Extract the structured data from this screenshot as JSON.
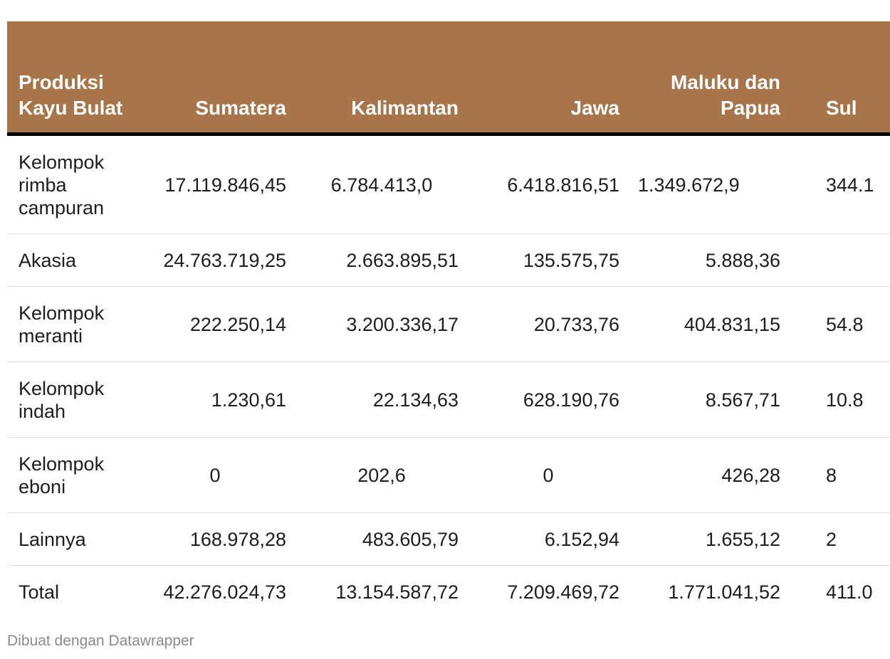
{
  "chart_data": {
    "type": "table",
    "columns": [
      "Produksi Kayu Bulat",
      "Sumatera",
      "Kalimantan",
      "Jawa",
      "Maluku dan Papua",
      "Sul"
    ],
    "rows": [
      [
        "Kelompok rimba campuran",
        "17.119.846,45",
        "6.784.413,0",
        "6.418.816,51",
        "1.349.672,9",
        "344.1"
      ],
      [
        "Akasia",
        "24.763.719,25",
        "2.663.895,51",
        "135.575,75",
        "5.888,36",
        ""
      ],
      [
        "Kelompok meranti",
        "222.250,14",
        "3.200.336,17",
        "20.733,76",
        "404.831,15",
        "54.8"
      ],
      [
        "Kelompok indah",
        "1.230,61",
        "22.134,63",
        "628.190,76",
        "8.567,71",
        "10.8"
      ],
      [
        "Kelompok eboni",
        "0",
        "202,6",
        "0",
        "426,28",
        "8"
      ],
      [
        "Lainnya",
        "168.978,28",
        "483.605,79",
        "6.152,94",
        "1.655,12",
        "2"
      ],
      [
        "Total",
        "42.276.024,73",
        "13.154.587,72",
        "7.209.469,72",
        "1.771.041,52",
        "411.0"
      ]
    ],
    "header_color": "#a8754b",
    "header_text_color": "#ffffff"
  },
  "footer": {
    "credit": "Dibuat dengan Datawrapper"
  }
}
